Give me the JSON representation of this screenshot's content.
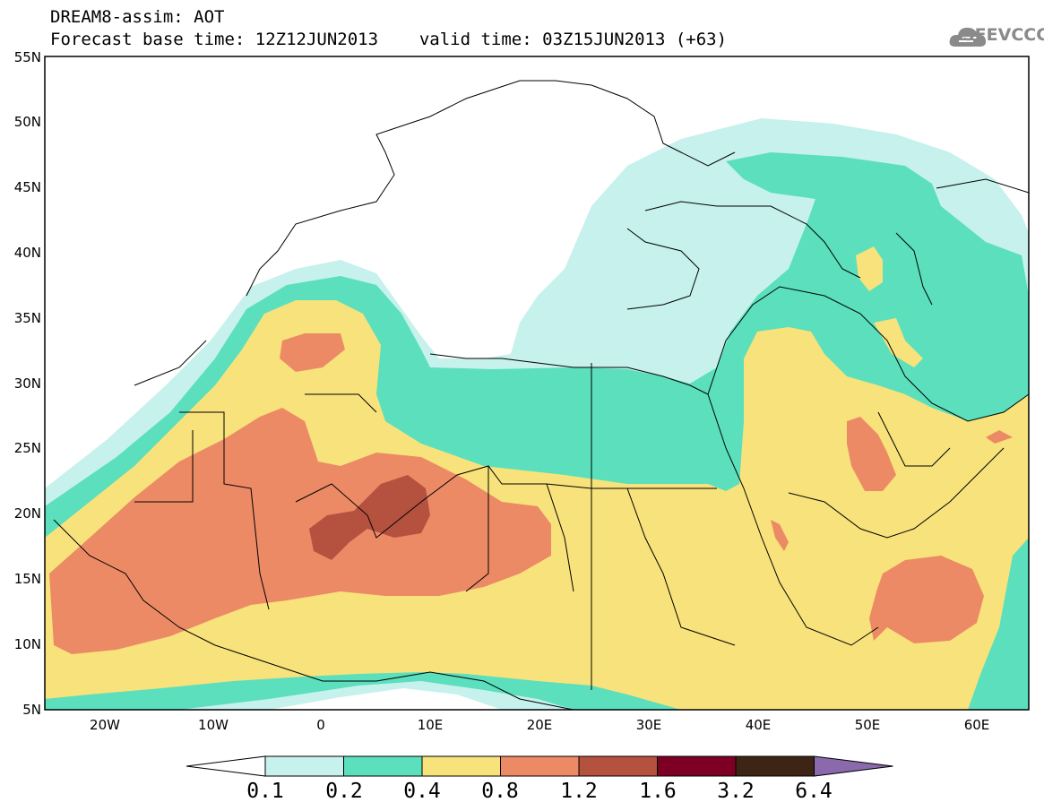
{
  "header": {
    "title": "DREAM8-assim: AOT",
    "base_time_label": "Forecast base time:",
    "base_time": "12Z12JUN2013",
    "valid_time_label": "valid time:",
    "valid_time": "03Z15JUN2013 (+63)"
  },
  "logo": {
    "text": "SEEVCCC",
    "icon": "cloud-icon"
  },
  "map": {
    "lon_range": [
      -25,
      65
    ],
    "lat_range": [
      5,
      55
    ],
    "lat_labels": [
      "55N",
      "50N",
      "45N",
      "40N",
      "35N",
      "30N",
      "25N",
      "20N",
      "15N",
      "10N",
      "5N"
    ],
    "lon_labels": [
      "20W",
      "10W",
      "0",
      "10E",
      "20E",
      "30E",
      "40E",
      "50E",
      "60E"
    ]
  },
  "colorbar": {
    "labels": [
      "0.1",
      "0.2",
      "0.4",
      "0.8",
      "1.2",
      "1.6",
      "3.2",
      "6.4"
    ],
    "colors": [
      "#ffffff",
      "#c6f1ec",
      "#5bdfbd",
      "#f8e27c",
      "#ec8a66",
      "#b4513f",
      "#7d0024",
      "#3e2414",
      "#8a6aac"
    ]
  }
}
